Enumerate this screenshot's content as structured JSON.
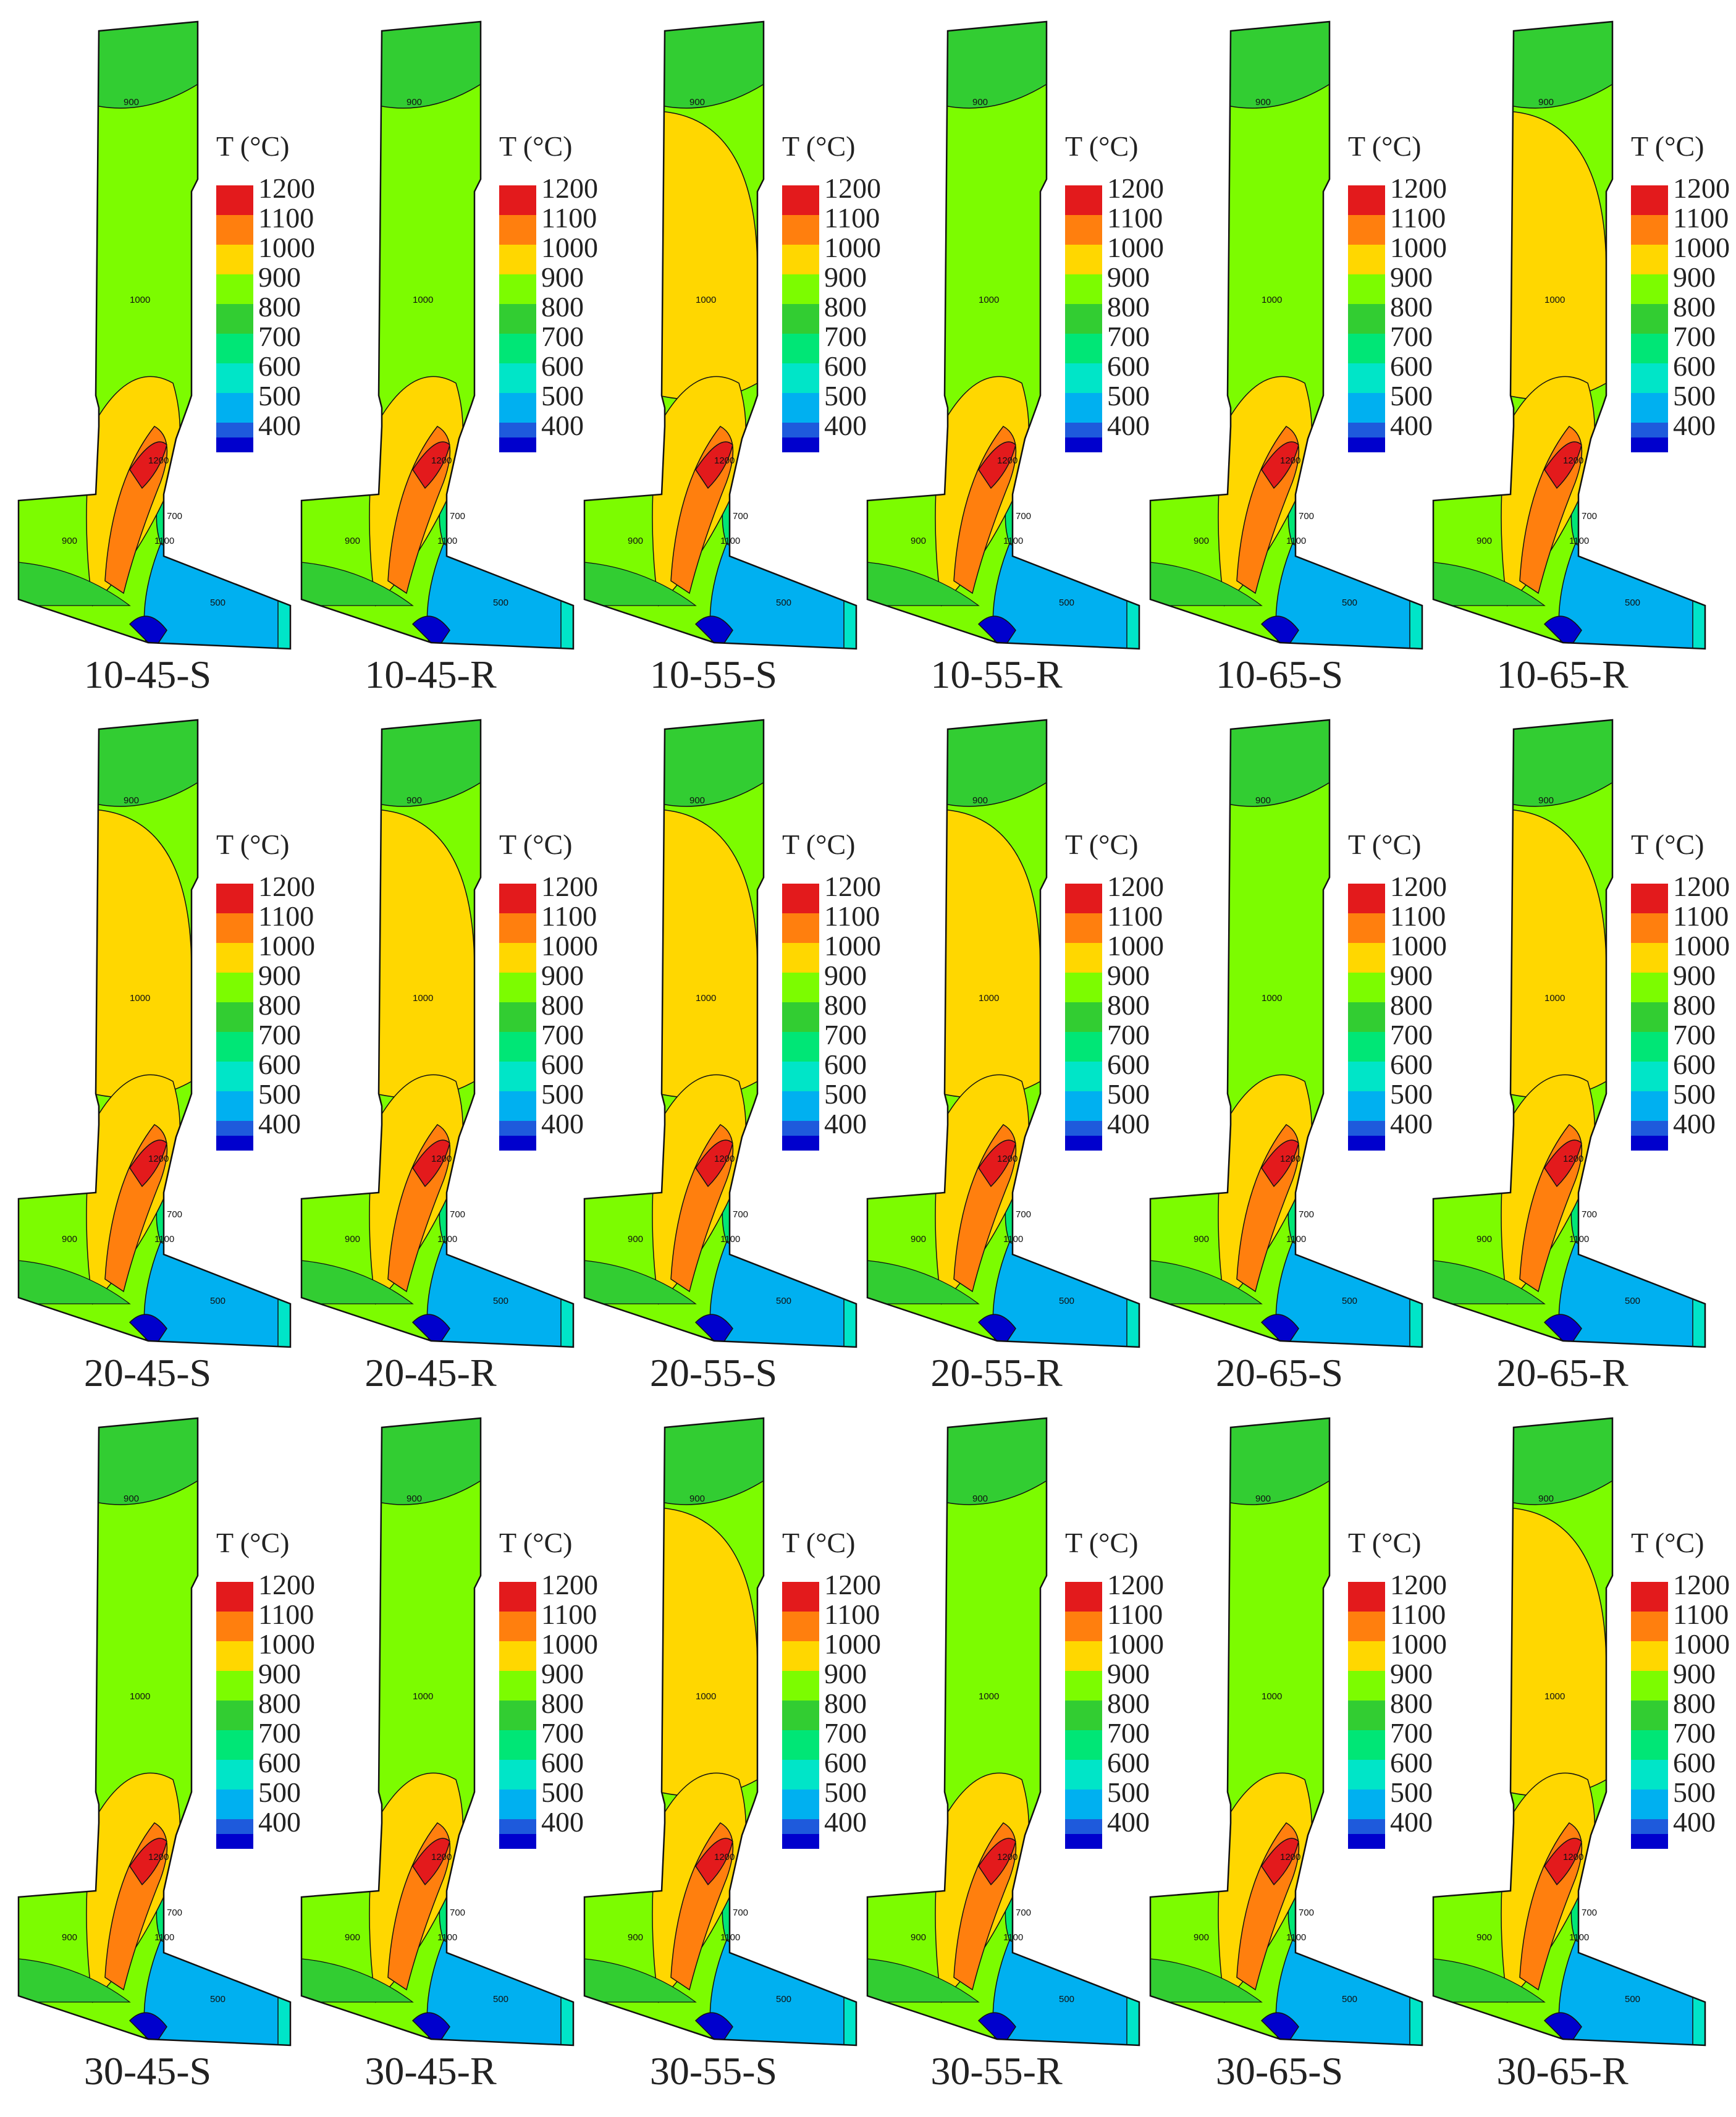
{
  "legend": {
    "title": "T (°C)",
    "levels": [
      {
        "label": "1200",
        "color": "#e31a1c"
      },
      {
        "label": "1100",
        "color": "#ff7f0e"
      },
      {
        "label": "1000",
        "color": "#ffd700"
      },
      {
        "label": "900",
        "color": "#7cfc00"
      },
      {
        "label": "800",
        "color": "#32cd32"
      },
      {
        "label": "700",
        "color": "#00e676"
      },
      {
        "label": "600",
        "color": "#00e5c8"
      },
      {
        "label": "500",
        "color": "#00b0f0"
      },
      {
        "label": "400",
        "color": "#1e5adc"
      }
    ],
    "bottom_color": "#0000cd"
  },
  "panels": [
    {
      "caption": "10-45-S"
    },
    {
      "caption": "10-45-R"
    },
    {
      "caption": "10-55-S"
    },
    {
      "caption": "10-55-R"
    },
    {
      "caption": "10-65-S"
    },
    {
      "caption": "10-65-R"
    },
    {
      "caption": "20-45-S"
    },
    {
      "caption": "20-45-R"
    },
    {
      "caption": "20-55-S"
    },
    {
      "caption": "20-55-R"
    },
    {
      "caption": "20-65-S"
    },
    {
      "caption": "20-65-R"
    },
    {
      "caption": "30-45-S"
    },
    {
      "caption": "30-45-R"
    },
    {
      "caption": "30-55-S"
    },
    {
      "caption": "30-55-R"
    },
    {
      "caption": "30-65-S"
    },
    {
      "caption": "30-65-R"
    }
  ],
  "contour_labels": [
    "900",
    "1000",
    "1100",
    "1200",
    "800",
    "500",
    "700"
  ]
}
